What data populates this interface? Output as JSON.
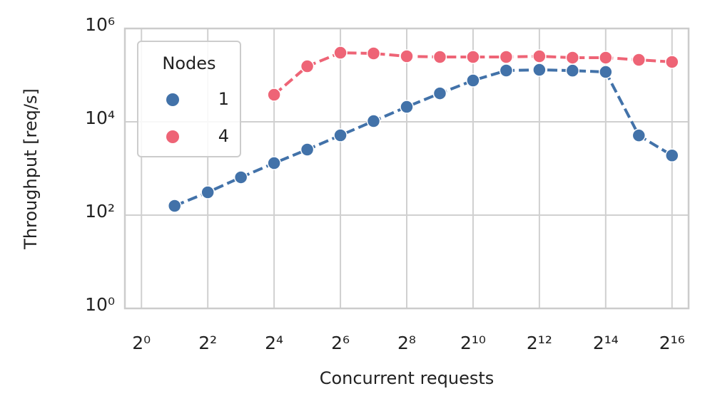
{
  "chart_data": {
    "type": "line",
    "xlabel": "Concurrent requests",
    "ylabel": "Throughput [req/s]",
    "x": [
      2,
      4,
      8,
      16,
      32,
      64,
      128,
      256,
      512,
      1024,
      2048,
      4096,
      8192,
      16384,
      32768,
      65536
    ],
    "series": [
      {
        "name": "1",
        "color": "#4272a9",
        "values": [
          158,
          308,
          645,
          1300,
          2540,
          5130,
          10350,
          20900,
          40700,
          76800,
          125600,
          130000,
          125000,
          117000,
          5100,
          1900
        ]
      },
      {
        "name": "4",
        "color": "#ee6476",
        "values": [
          null,
          null,
          null,
          38000,
          155000,
          302000,
          292000,
          254000,
          245000,
          245000,
          245000,
          254000,
          237000,
          237000,
          213000,
          192000
        ]
      }
    ],
    "legend_title": "Nodes",
    "legend": "upper left",
    "xscale": "log",
    "yscale": "log",
    "grid": true,
    "xlim": [
      0.7071,
      92682
    ],
    "ylim": [
      1,
      1000000
    ],
    "xticks": [
      {
        "value": 1,
        "label": "2⁰"
      },
      {
        "value": 4,
        "label": "2²"
      },
      {
        "value": 16,
        "label": "2⁴"
      },
      {
        "value": 64,
        "label": "2⁶"
      },
      {
        "value": 256,
        "label": "2⁸"
      },
      {
        "value": 1024,
        "label": "2¹⁰"
      },
      {
        "value": 4096,
        "label": "2¹²"
      },
      {
        "value": 16384,
        "label": "2¹⁴"
      },
      {
        "value": 65536,
        "label": "2¹⁶"
      }
    ],
    "yticks": [
      {
        "value": 1,
        "label": "10⁰"
      },
      {
        "value": 100,
        "label": "10²"
      },
      {
        "value": 10000,
        "label": "10⁴"
      },
      {
        "value": 1000000,
        "label": "10⁶"
      }
    ]
  }
}
